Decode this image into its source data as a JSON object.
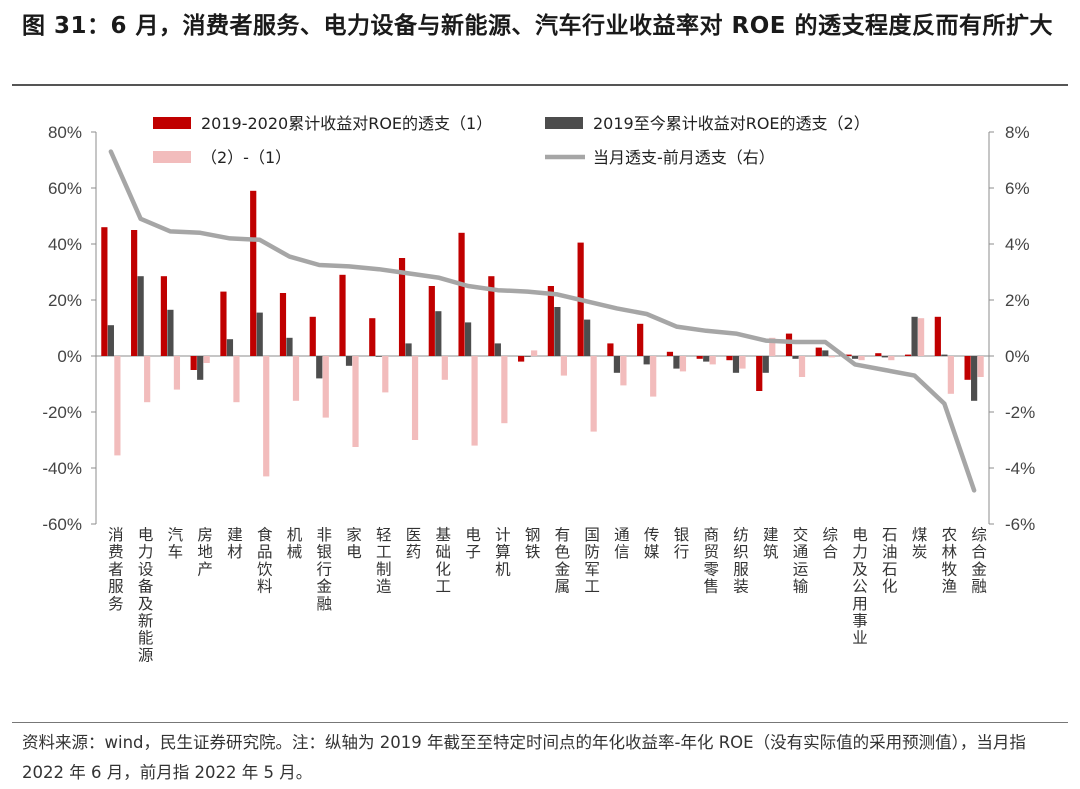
{
  "header": {
    "title": "图 31：6 月，消费者服务、电力设备与新能源、汽车行业收益率对 ROE 的透支程度反而有所扩大"
  },
  "footer": {
    "note": "资料来源：wind，民生证券研究院。注：纵轴为 2019 年截至至特定时间点的年化收益率-年化 ROE（没有实际值的采用预测值），当月指 2022 年 6 月，前月指 2022 年 5 月。"
  },
  "chart_data": {
    "type": "bar",
    "categories": [
      "消费者服务",
      "电力设备及新能源",
      "汽车",
      "房地产",
      "建材",
      "食品饮料",
      "机械",
      "非银行金融",
      "家电",
      "轻工制造",
      "医药",
      "基础化工",
      "电子",
      "计算机",
      "钢铁",
      "有色金属",
      "国防军工",
      "通信",
      "传媒",
      "银行",
      "商贸零售",
      "纺织服装",
      "建筑",
      "交通运输",
      "综合",
      "电力及公用事业",
      "石油石化",
      "煤炭",
      "农林牧渔",
      "综合金融"
    ],
    "series": [
      {
        "name": "2019-2020累计收益对ROE的透支（1）",
        "color": "#c00000",
        "axis": "left",
        "values": [
          46,
          45,
          28.5,
          -5,
          23,
          59,
          22.5,
          14,
          29,
          13.5,
          35,
          25,
          44,
          28.5,
          -2,
          25,
          40.5,
          4.5,
          11.5,
          1.5,
          -1,
          -1.5,
          -12.5,
          8,
          3,
          0.5,
          1,
          0.5,
          14,
          -8.5
        ]
      },
      {
        "name": "2019至今累计收益对ROE的透支（2）",
        "color": "#4d4d4d",
        "axis": "left",
        "values": [
          11,
          28.5,
          16.5,
          -8.5,
          6,
          15.5,
          6.5,
          -8,
          -3.5,
          0,
          4.5,
          16,
          12,
          4.5,
          0,
          17.5,
          13,
          -6,
          -3,
          -4.5,
          -2,
          -6,
          -6,
          -1,
          2,
          -1,
          -0.5,
          14,
          0.5,
          -16
        ]
      },
      {
        "name": "（2）-（1）",
        "color": "#f2bcbc",
        "axis": "left",
        "values": [
          -35.5,
          -16.5,
          -12,
          -2.5,
          -16.5,
          -43,
          -16,
          -22,
          -32.5,
          -13,
          -30,
          -8.5,
          -32,
          -24,
          2,
          -7,
          -27,
          -10.5,
          -14.5,
          -5.5,
          -3,
          -4.5,
          6.5,
          -7.5,
          -0.5,
          -1.5,
          -1.5,
          13.5,
          -13.5,
          -7.5
        ]
      },
      {
        "name": "当月透支-前月透支（右）",
        "color": "#a6a6a6",
        "type": "line",
        "axis": "right",
        "values": [
          7.3,
          4.9,
          4.45,
          4.4,
          4.2,
          4.15,
          3.55,
          3.25,
          3.2,
          3.1,
          2.95,
          2.8,
          2.5,
          2.35,
          2.3,
          2.2,
          1.95,
          1.7,
          1.5,
          1.05,
          0.9,
          0.8,
          0.55,
          0.5,
          0.5,
          -0.3,
          -0.5,
          -0.7,
          -1.7,
          -4.8
        ]
      }
    ],
    "ylim": [
      -60,
      80
    ],
    "yticks": [
      "80%",
      "60%",
      "40%",
      "20%",
      "0%",
      "-20%",
      "-40%",
      "-60%"
    ],
    "y2lim": [
      -6,
      8
    ],
    "y2ticks": [
      "8%",
      "6%",
      "4%",
      "2%",
      "0%",
      "-2%",
      "-4%",
      "-6%"
    ],
    "legend": "top"
  }
}
